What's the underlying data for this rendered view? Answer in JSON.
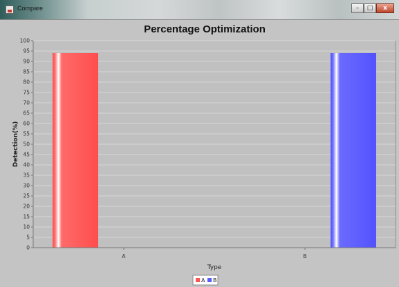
{
  "window": {
    "title": "Compare",
    "controls": {
      "minimize": "–",
      "maximize": "□",
      "close": "x"
    }
  },
  "chart_data": {
    "type": "bar",
    "title": "Percentage Optimization",
    "xlabel": "Type",
    "ylabel": "Detection(%)",
    "categories": [
      "A",
      "B"
    ],
    "series": [
      {
        "name": "A",
        "color": "#ff5555",
        "values": [
          94,
          null
        ]
      },
      {
        "name": "B",
        "color": "#5a5aff",
        "values": [
          null,
          94
        ]
      }
    ],
    "ylim": [
      0,
      100
    ],
    "yticks": [
      0,
      5,
      10,
      15,
      20,
      25,
      30,
      35,
      40,
      45,
      50,
      55,
      60,
      65,
      70,
      75,
      80,
      85,
      90,
      95,
      100
    ],
    "grid": true,
    "legend": "bottom-center"
  }
}
